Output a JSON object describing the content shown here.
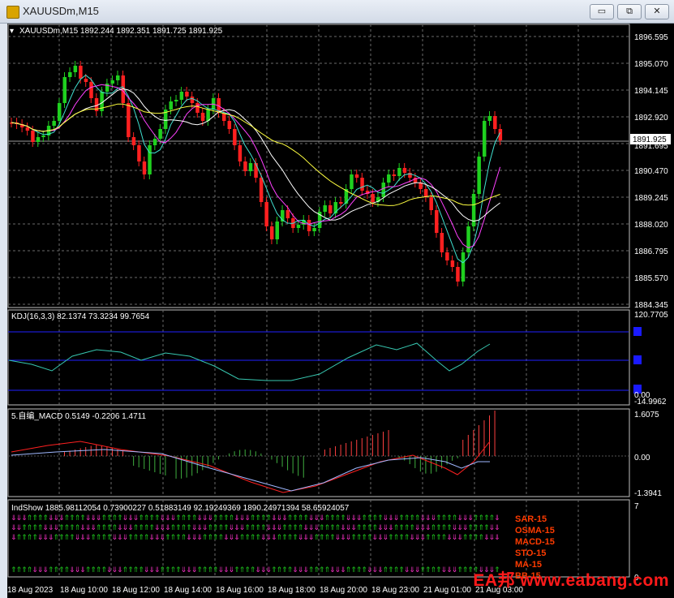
{
  "window": {
    "title": "XAUUSDm,M15",
    "buttons": {
      "minimize": "▭",
      "restore": "⧉",
      "close": "✕"
    }
  },
  "main_chart": {
    "symbol_line": "XAUUSDm,M15  1892.244 1892.351 1891.725 1891.925",
    "price_labels": [
      "1896.595",
      "1895.070",
      "1894.145",
      "1892.920",
      "1891.925",
      "1890.470",
      "1889.245",
      "1888.020",
      "1886.795",
      "1885.570",
      "1884.345"
    ],
    "current_price": "1891.925",
    "hidden_label": "1891.695"
  },
  "kdj": {
    "legend": "KDJ(16,3,3) 82.1374 73.3234 99.7654",
    "scale": [
      "120.7705",
      "0.00",
      "-14.9962"
    ]
  },
  "macd": {
    "legend": "5.自编_MACD 0.5149 -0.2206 1.4711",
    "scale": [
      "1.6075",
      "0.00",
      "-1.3941"
    ]
  },
  "indshow": {
    "legend": "IndShow 1885.98112054 0.73900227 0.51883149 92.19249369 1890.24971394 58.65924057",
    "scale": [
      "7",
      "0"
    ],
    "signals": [
      "SAR-15",
      "OSMA-15",
      "MACD-15",
      "STO-15",
      "MA-15",
      "BB-15"
    ]
  },
  "time_axis": [
    "18 Aug 2023",
    "18 Aug 10:00",
    "18 Aug 12:00",
    "18 Aug 14:00",
    "18 Aug 16:00",
    "18 Aug 18:00",
    "18 Aug 20:00",
    "18 Aug 23:00",
    "21 Aug 01:00",
    "21 Aug 03:00"
  ],
  "watermark": "EA邦 www.eabang.com",
  "colors": {
    "bull": "#1fd01f",
    "bear": "#ff2020",
    "background": "#000000",
    "grid": "#6a6a6a",
    "ma_fast": "#40e0d0",
    "ma_mid": "#ff40ff",
    "ma_slow": "#ffffff",
    "ma_long": "#ffff40",
    "kdj_line": "#37c7b0",
    "macd_hist": "#ff4040",
    "macd_signal": "#ff2020",
    "signal_text": "#ff3b00"
  }
}
